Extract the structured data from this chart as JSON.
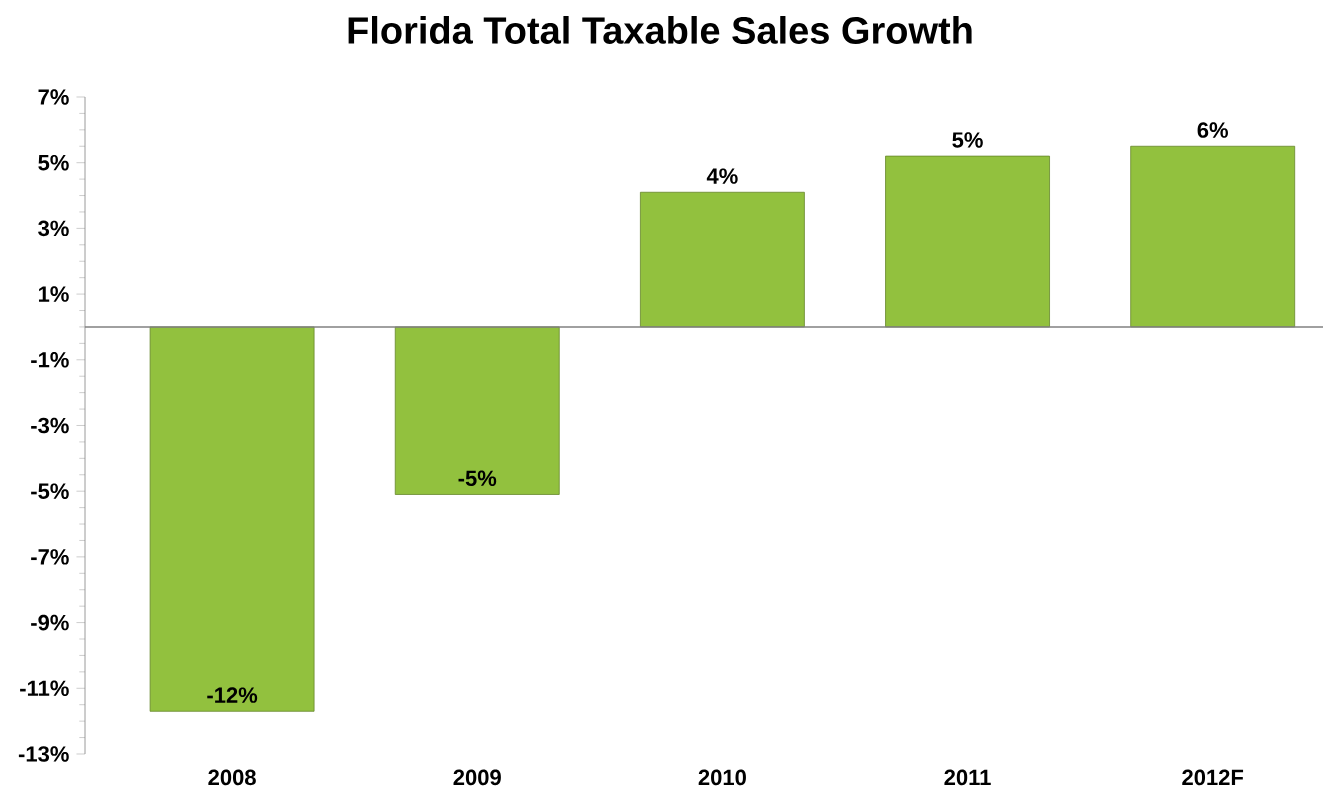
{
  "chart_data": {
    "type": "bar",
    "title": "Florida Total Taxable Sales Growth",
    "categories": [
      "2008",
      "2009",
      "2010",
      "2011",
      "2012F"
    ],
    "values": [
      -11.7,
      -5.1,
      4.1,
      5.2,
      5.5
    ],
    "value_labels": [
      "-12%",
      "-5%",
      "4%",
      "5%",
      "6%"
    ],
    "color": "#92c13e",
    "ylim": [
      -13,
      7
    ],
    "yticks": [
      {
        "value": -13,
        "label": "-13%"
      },
      {
        "value": -11,
        "label": "-11%"
      },
      {
        "value": -9,
        "label": "-9%"
      },
      {
        "value": -7,
        "label": "-7%"
      },
      {
        "value": -5,
        "label": "-5%"
      },
      {
        "value": -3,
        "label": "-3%"
      },
      {
        "value": -1,
        "label": "-1%"
      },
      {
        "value": 1,
        "label": "1%"
      },
      {
        "value": 3,
        "label": "3%"
      },
      {
        "value": 5,
        "label": "5%"
      },
      {
        "value": 7,
        "label": "7%"
      }
    ]
  }
}
